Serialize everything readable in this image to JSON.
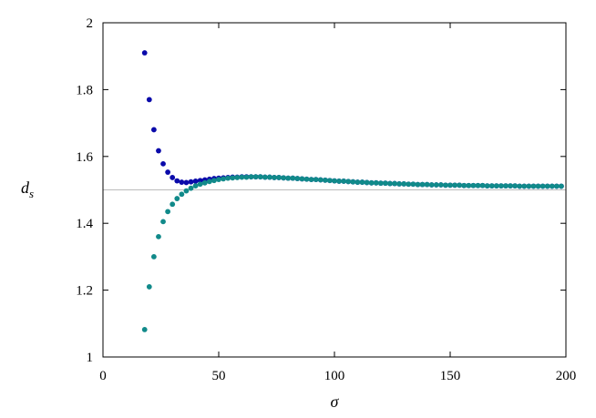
{
  "chart_data": {
    "type": "scatter",
    "xlabel": "σ",
    "ylabel_main": "d",
    "ylabel_sub": "s",
    "xlim": [
      0,
      200
    ],
    "ylim": [
      1,
      2
    ],
    "x_ticks": [
      0,
      50,
      100,
      150,
      200
    ],
    "y_ticks": [
      1,
      1.2,
      1.4,
      1.6,
      1.8,
      2
    ],
    "y_tick_labels": [
      "1",
      "1.2",
      "1.4",
      "1.6",
      "1.8",
      "2"
    ],
    "grid": false,
    "reference_line": {
      "y": 1.5,
      "color": "#bbbbbb"
    },
    "series": [
      {
        "color": "#0a0aaa",
        "x": [
          18,
          20,
          22,
          24,
          26,
          28,
          30,
          32,
          34,
          36,
          38,
          40,
          42,
          44,
          46,
          48,
          50,
          52,
          54,
          56,
          58,
          60,
          62,
          64,
          66,
          68,
          70,
          72,
          74,
          76,
          78,
          80,
          82,
          84,
          86,
          88,
          90,
          92,
          94,
          96,
          98,
          100,
          102,
          104,
          106,
          108,
          110,
          112,
          114,
          116,
          118,
          120,
          122,
          124,
          126,
          128,
          130,
          132,
          134,
          136,
          138,
          140,
          142,
          144,
          146,
          148,
          150,
          152,
          154,
          156,
          158,
          160,
          162,
          164,
          166,
          168,
          170,
          172,
          174,
          176,
          178,
          180,
          182,
          184,
          186,
          188,
          190,
          192,
          194,
          196,
          198
        ],
        "y": [
          1.91,
          1.77,
          1.68,
          1.617,
          1.578,
          1.553,
          1.537,
          1.527,
          1.523,
          1.522,
          1.524,
          1.526,
          1.528,
          1.53,
          1.532,
          1.534,
          1.535,
          1.536,
          1.537,
          1.538,
          1.538,
          1.539,
          1.539,
          1.539,
          1.539,
          1.539,
          1.538,
          1.538,
          1.537,
          1.537,
          1.536,
          1.535,
          1.535,
          1.534,
          1.533,
          1.532,
          1.531,
          1.531,
          1.53,
          1.529,
          1.528,
          1.527,
          1.526,
          1.526,
          1.525,
          1.524,
          1.523,
          1.523,
          1.522,
          1.521,
          1.521,
          1.52,
          1.52,
          1.519,
          1.519,
          1.518,
          1.518,
          1.517,
          1.517,
          1.516,
          1.516,
          1.516,
          1.515,
          1.515,
          1.515,
          1.514,
          1.514,
          1.514,
          1.514,
          1.513,
          1.513,
          1.513,
          1.513,
          1.513,
          1.512,
          1.512,
          1.512,
          1.512,
          1.512,
          1.512,
          1.512,
          1.511,
          1.511,
          1.511,
          1.511,
          1.511,
          1.511,
          1.511,
          1.511,
          1.511,
          1.511
        ]
      },
      {
        "color": "#118a8a",
        "x": [
          18,
          20,
          22,
          24,
          26,
          28,
          30,
          32,
          34,
          36,
          38,
          40,
          42,
          44,
          46,
          48,
          50,
          52,
          54,
          56,
          58,
          60,
          62,
          64,
          66,
          68,
          70,
          72,
          74,
          76,
          78,
          80,
          82,
          84,
          86,
          88,
          90,
          92,
          94,
          96,
          98,
          100,
          102,
          104,
          106,
          108,
          110,
          112,
          114,
          116,
          118,
          120,
          122,
          124,
          126,
          128,
          130,
          132,
          134,
          136,
          138,
          140,
          142,
          144,
          146,
          148,
          150,
          152,
          154,
          156,
          158,
          160,
          162,
          164,
          166,
          168,
          170,
          172,
          174,
          176,
          178,
          180,
          182,
          184,
          186,
          188,
          190,
          192,
          194,
          196,
          198
        ],
        "y": [
          1.082,
          1.21,
          1.3,
          1.36,
          1.405,
          1.435,
          1.457,
          1.474,
          1.487,
          1.497,
          1.505,
          1.512,
          1.517,
          1.521,
          1.525,
          1.528,
          1.531,
          1.533,
          1.535,
          1.536,
          1.537,
          1.538,
          1.538,
          1.539,
          1.539,
          1.539,
          1.538,
          1.538,
          1.537,
          1.537,
          1.536,
          1.535,
          1.535,
          1.534,
          1.533,
          1.532,
          1.531,
          1.531,
          1.53,
          1.529,
          1.528,
          1.527,
          1.526,
          1.526,
          1.525,
          1.524,
          1.523,
          1.523,
          1.522,
          1.521,
          1.521,
          1.52,
          1.52,
          1.519,
          1.519,
          1.518,
          1.518,
          1.517,
          1.517,
          1.516,
          1.516,
          1.516,
          1.515,
          1.515,
          1.515,
          1.514,
          1.514,
          1.514,
          1.514,
          1.513,
          1.513,
          1.513,
          1.513,
          1.513,
          1.512,
          1.512,
          1.512,
          1.512,
          1.512,
          1.512,
          1.512,
          1.511,
          1.511,
          1.511,
          1.511,
          1.511,
          1.511,
          1.511,
          1.511,
          1.511,
          1.511
        ]
      }
    ]
  }
}
